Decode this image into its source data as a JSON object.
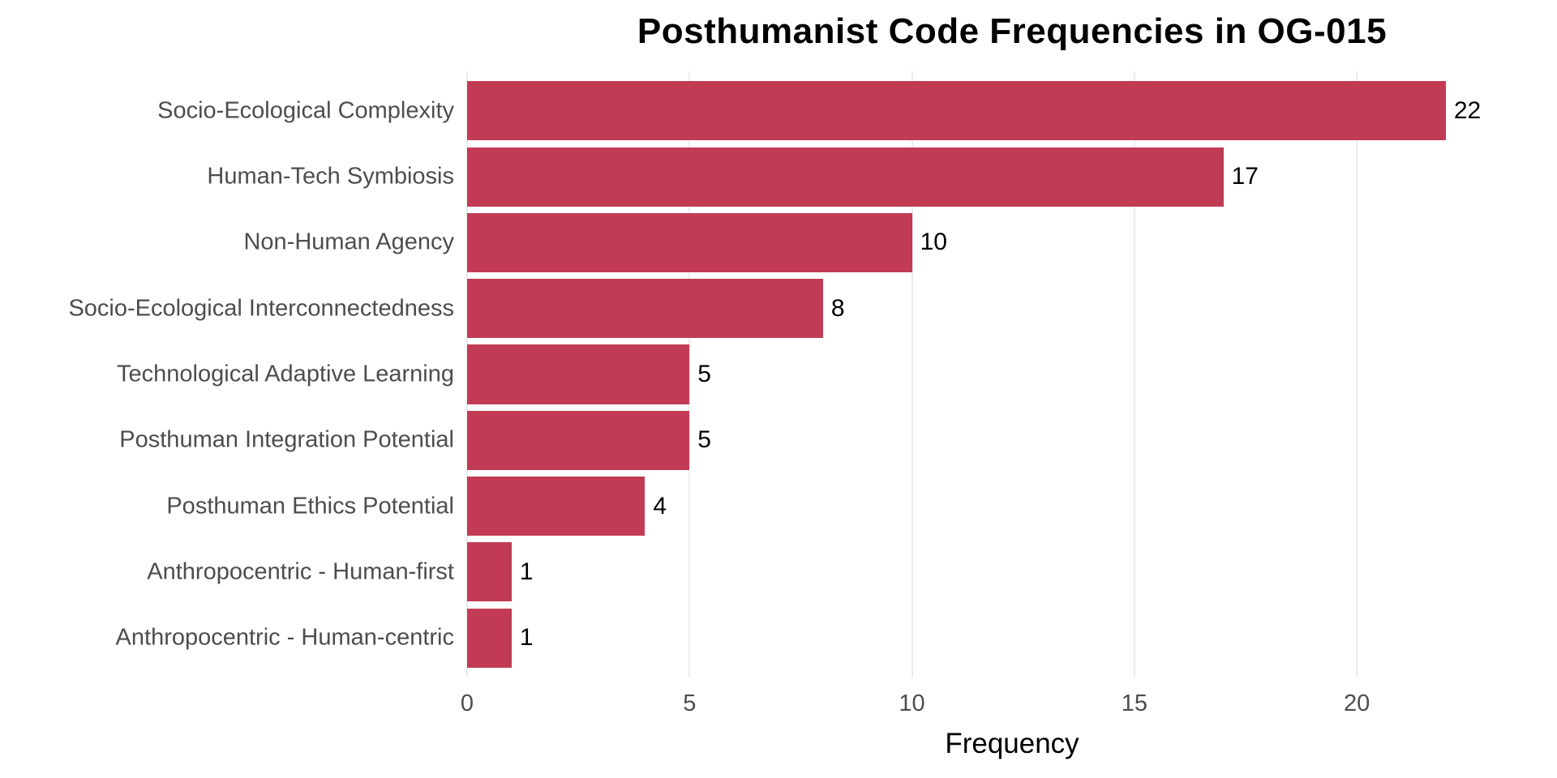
{
  "page": {
    "background": "#FFFFFF"
  },
  "chart_data": {
    "type": "bar",
    "orientation": "horizontal",
    "title": "Posthumanist Code Frequencies in OG-015",
    "xlabel": "Frequency",
    "ylabel": "",
    "categories": [
      "Socio-Ecological Complexity",
      "Human-Tech Symbiosis",
      "Non-Human Agency",
      "Socio-Ecological Interconnectedness",
      "Technological Adaptive Learning",
      "Posthuman Integration Potential",
      "Posthuman Ethics Potential",
      "Anthropocentric - Human-first",
      "Anthropocentric - Human-centric"
    ],
    "values": [
      22,
      17,
      10,
      8,
      5,
      5,
      4,
      1,
      1
    ],
    "value_labels": [
      "22",
      "17",
      "10",
      "8",
      "5",
      "5",
      "4",
      "1",
      "1"
    ],
    "x_ticks": [
      0,
      5,
      10,
      15,
      20
    ],
    "x_tick_labels": [
      "0",
      "5",
      "10",
      "15",
      "20"
    ],
    "xlim": [
      0,
      24.5
    ],
    "grid": "vertical-major-only",
    "legend": "none",
    "colors": {
      "bar": "#C23B55",
      "grid": "#EBEBEB",
      "axis_text": "#4D4D4D",
      "title": "#000000",
      "value_label": "#000000"
    }
  }
}
